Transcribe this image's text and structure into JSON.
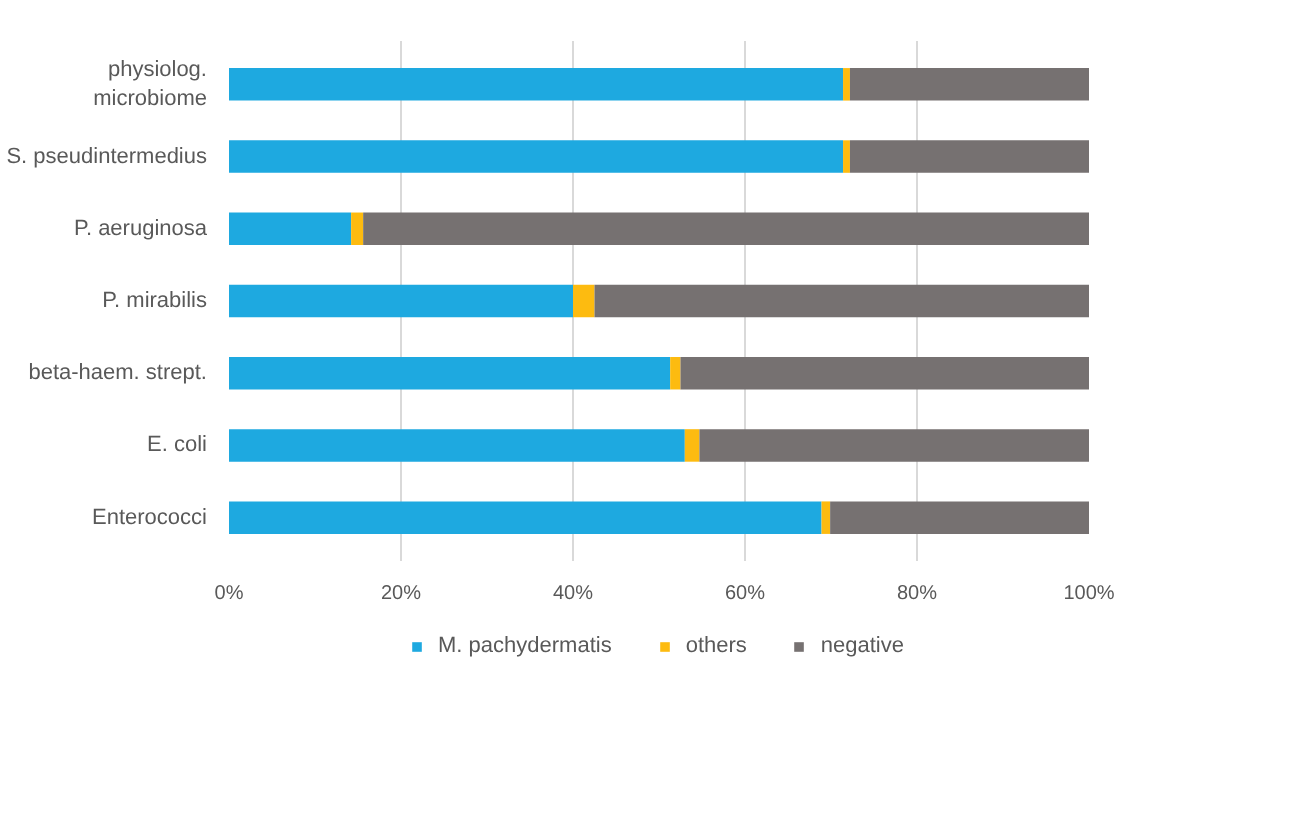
{
  "chart_data": {
    "type": "bar",
    "orientation": "horizontal",
    "stacked": true,
    "categories": [
      "physiolog.\nmicrobiome",
      "S. pseudintermedius",
      "P. aeruginosa",
      "P. mirabilis",
      "beta-haem. strept.",
      "E. coli",
      "Enterococci"
    ],
    "series": [
      {
        "name": "M. pachydermatis",
        "color": "#1ea9e0",
        "values": [
          71.4,
          71.4,
          14.2,
          40.0,
          51.3,
          53.0,
          68.9
        ]
      },
      {
        "name": "others",
        "color": "#fdbb10",
        "values": [
          0.8,
          0.8,
          1.4,
          2.5,
          1.2,
          1.7,
          1.0
        ]
      },
      {
        "name": "negative",
        "color": "#767171",
        "values": [
          27.8,
          27.8,
          84.4,
          57.5,
          47.5,
          45.3,
          30.1
        ]
      }
    ],
    "xlim": [
      0,
      100
    ],
    "xticks": [
      {
        "value": 0,
        "label": "0%"
      },
      {
        "value": 20,
        "label": "20%"
      },
      {
        "value": 40,
        "label": "40%"
      },
      {
        "value": 60,
        "label": "60%"
      },
      {
        "value": 80,
        "label": "80%"
      },
      {
        "value": 100,
        "label": "100%"
      }
    ],
    "grid": "x",
    "legend": "bottom"
  }
}
